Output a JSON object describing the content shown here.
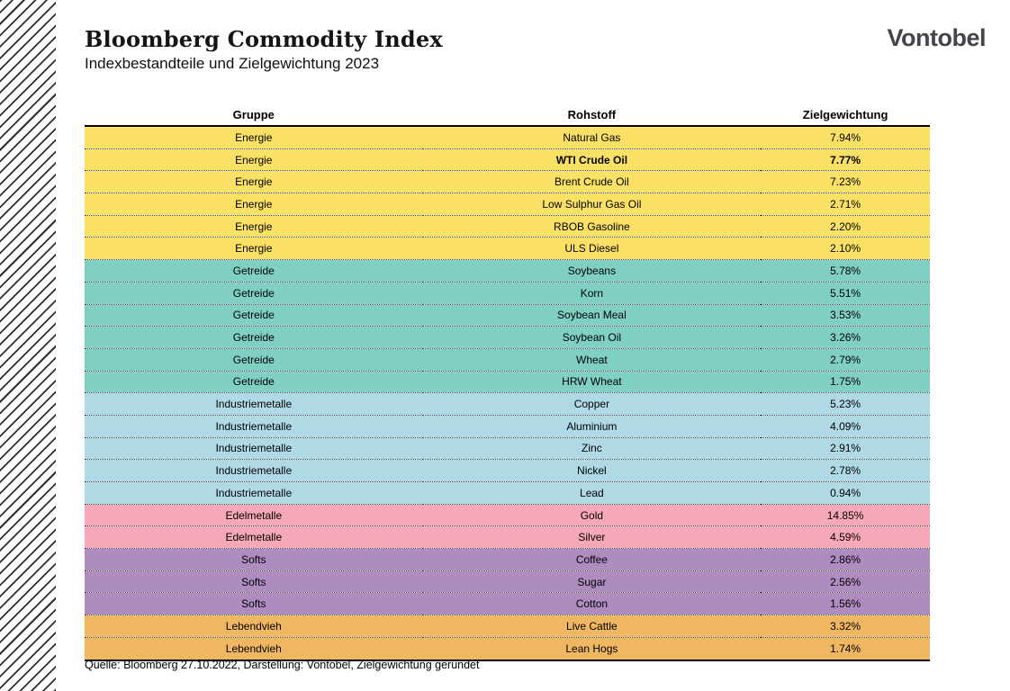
{
  "page": {
    "title": "Bloomberg Commodity Index",
    "subtitle": "Indexbestandteile und Zielgewichtung 2023",
    "logo_text": "Vontobel",
    "footer": "Quelle: Bloomberg 27.10.2022, Darstellung: Vontobel, Zielgewichtung gerundet"
  },
  "colors": {
    "energie": "#FAE166",
    "getreide": "#7FCFC3",
    "industriemetalle": "#AFD9E5",
    "edelmetalle": "#F6A8B8",
    "softs": "#AF8CC0",
    "lebendvieh": "#F0B763",
    "logo_gray": "#45464b"
  },
  "table": {
    "columns": [
      "Gruppe",
      "Rohstoff",
      "Zielgewichtung"
    ],
    "groups": [
      {
        "name": "Energie",
        "color": "#FAE166",
        "rows": [
          {
            "commodity": "Natural Gas",
            "weight": "7.94%"
          },
          {
            "commodity": "WTI Crude Oil",
            "weight": "7.77%",
            "bold": true
          },
          {
            "commodity": "Brent Crude Oil",
            "weight": "7.23%"
          },
          {
            "commodity": "Low Sulphur Gas Oil",
            "weight": "2.71%"
          },
          {
            "commodity": "RBOB Gasoline",
            "weight": "2.20%"
          },
          {
            "commodity": "ULS Diesel",
            "weight": "2.10%"
          }
        ]
      },
      {
        "name": "Getreide",
        "color": "#7FCFC3",
        "rows": [
          {
            "commodity": "Soybeans",
            "weight": "5.78%"
          },
          {
            "commodity": "Korn",
            "weight": "5.51%"
          },
          {
            "commodity": "Soybean Meal",
            "weight": "3.53%"
          },
          {
            "commodity": "Soybean Oil",
            "weight": "3.26%"
          },
          {
            "commodity": "Wheat",
            "weight": "2.79%"
          },
          {
            "commodity": "HRW Wheat",
            "weight": "1.75%"
          }
        ]
      },
      {
        "name": "Industriemetalle",
        "color": "#AFD9E5",
        "rows": [
          {
            "commodity": "Copper",
            "weight": "5.23%"
          },
          {
            "commodity": "Aluminium",
            "weight": "4.09%"
          },
          {
            "commodity": "Zinc",
            "weight": "2.91%"
          },
          {
            "commodity": "Nickel",
            "weight": "2.78%"
          },
          {
            "commodity": "Lead",
            "weight": "0.94%"
          }
        ]
      },
      {
        "name": "Edelmetalle",
        "color": "#F6A8B8",
        "rows": [
          {
            "commodity": "Gold",
            "weight": "14.85%"
          },
          {
            "commodity": "Silver",
            "weight": "4.59%"
          }
        ]
      },
      {
        "name": "Softs",
        "color": "#AF8CC0",
        "rows": [
          {
            "commodity": "Coffee",
            "weight": "2.86%"
          },
          {
            "commodity": "Sugar",
            "weight": "2.56%"
          },
          {
            "commodity": "Cotton",
            "weight": "1.56%"
          }
        ]
      },
      {
        "name": "Lebendvieh",
        "color": "#F0B763",
        "rows": [
          {
            "commodity": "Live Cattle",
            "weight": "3.32%"
          },
          {
            "commodity": "Lean Hogs",
            "weight": "1.74%"
          }
        ]
      }
    ]
  },
  "chart_data": {
    "type": "table",
    "title": "Bloomberg Commodity Index",
    "subtitle": "Indexbestandteile und Zielgewichtung 2023",
    "columns": [
      "Gruppe",
      "Rohstoff",
      "Zielgewichtung"
    ],
    "rows": [
      [
        "Energie",
        "Natural Gas",
        "7.94%"
      ],
      [
        "Energie",
        "WTI Crude Oil",
        "7.77%"
      ],
      [
        "Energie",
        "Brent Crude Oil",
        "7.23%"
      ],
      [
        "Energie",
        "Low Sulphur Gas Oil",
        "2.71%"
      ],
      [
        "Energie",
        "RBOB Gasoline",
        "2.20%"
      ],
      [
        "Energie",
        "ULS Diesel",
        "2.10%"
      ],
      [
        "Getreide",
        "Soybeans",
        "5.78%"
      ],
      [
        "Getreide",
        "Korn",
        "5.51%"
      ],
      [
        "Getreide",
        "Soybean Meal",
        "3.53%"
      ],
      [
        "Getreide",
        "Soybean Oil",
        "3.26%"
      ],
      [
        "Getreide",
        "Wheat",
        "2.79%"
      ],
      [
        "Getreide",
        "HRW Wheat",
        "1.75%"
      ],
      [
        "Industriemetalle",
        "Copper",
        "5.23%"
      ],
      [
        "Industriemetalle",
        "Aluminium",
        "4.09%"
      ],
      [
        "Industriemetalle",
        "Zinc",
        "2.91%"
      ],
      [
        "Industriemetalle",
        "Nickel",
        "2.78%"
      ],
      [
        "Industriemetalle",
        "Lead",
        "0.94%"
      ],
      [
        "Edelmetalle",
        "Gold",
        "14.85%"
      ],
      [
        "Edelmetalle",
        "Silver",
        "4.59%"
      ],
      [
        "Softs",
        "Coffee",
        "2.86%"
      ],
      [
        "Softs",
        "Sugar",
        "2.56%"
      ],
      [
        "Softs",
        "Cotton",
        "1.56%"
      ],
      [
        "Lebendvieh",
        "Live Cattle",
        "3.32%"
      ],
      [
        "Lebendvieh",
        "Lean Hogs",
        "1.74%"
      ]
    ],
    "highlighted_row": [
      "Energie",
      "WTI Crude Oil",
      "7.77%"
    ],
    "group_colors": {
      "Energie": "#FAE166",
      "Getreide": "#7FCFC3",
      "Industriemetalle": "#AFD9E5",
      "Edelmetalle": "#F6A8B8",
      "Softs": "#AF8CC0",
      "Lebendvieh": "#F0B763"
    }
  }
}
